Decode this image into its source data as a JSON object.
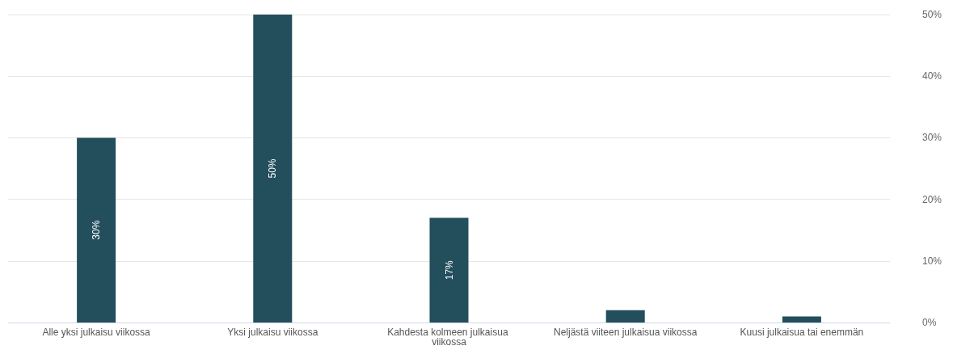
{
  "chart_data": {
    "type": "bar",
    "categories": [
      "Alle yksi julkaisu viikossa",
      "Yksi julkaisu viikossa",
      "Kahdesta kolmeen julkaisua viikossa",
      "Neljästä viiteen julkaisua viikossa",
      "Kuusi julkaisua tai enemmän"
    ],
    "values": [
      30,
      50,
      17,
      2,
      1
    ],
    "color": "#234e5c",
    "value_labels": [
      "30%",
      "50%",
      "17%",
      null,
      null
    ],
    "ylim": [
      0,
      50
    ],
    "yticks": [
      {
        "value": 0,
        "label": "0%"
      },
      {
        "value": 10,
        "label": "10%"
      },
      {
        "value": 20,
        "label": "20%"
      },
      {
        "value": 30,
        "label": "30%"
      },
      {
        "value": 40,
        "label": "40%"
      },
      {
        "value": 50,
        "label": "50%"
      }
    ],
    "grid": "y"
  }
}
